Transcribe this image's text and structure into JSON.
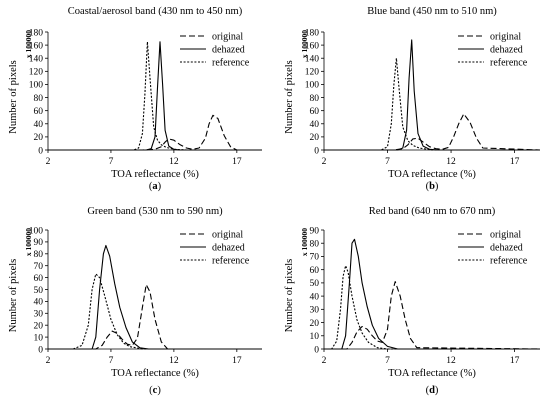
{
  "chart_data": [
    {
      "type": "line",
      "panel_label": "(a)",
      "title": "Coastal/aerosol band (430 nm to 450 nm)",
      "xlabel": "TOA reflectance (%)",
      "ylabel": "Number of pixels",
      "y_multiplier": "x 100000",
      "xlim": [
        2,
        19
      ],
      "ylim": [
        0,
        180
      ],
      "xticks": [
        2,
        7,
        12,
        17
      ],
      "yticks": [
        0,
        20,
        40,
        60,
        80,
        100,
        120,
        140,
        160,
        180
      ],
      "legend_position": "top-right",
      "series": [
        {
          "name": "original",
          "style": "dashed",
          "color": "#000000",
          "x": [
            2,
            9.5,
            10.5,
            11,
            11.3,
            11.6,
            12,
            12.5,
            13,
            13.5,
            14,
            14.5,
            14.8,
            15.1,
            15.5,
            16,
            16.5,
            17,
            19
          ],
          "y": [
            0,
            0,
            1,
            5,
            12,
            17,
            15,
            8,
            3,
            1,
            3,
            18,
            40,
            53,
            48,
            22,
            5,
            0,
            0
          ]
        },
        {
          "name": "dehazed",
          "style": "solid",
          "color": "#000000",
          "x": [
            2,
            9.8,
            10.2,
            10.5,
            10.7,
            10.9,
            11.1,
            11.3,
            11.6,
            12,
            12.5,
            13,
            19
          ],
          "y": [
            0,
            0,
            2,
            20,
            95,
            165,
            100,
            30,
            6,
            1,
            0,
            0,
            0
          ]
        },
        {
          "name": "reference",
          "style": "dotted",
          "color": "#000000",
          "x": [
            2,
            8.8,
            9.2,
            9.5,
            9.7,
            9.9,
            10.1,
            10.4,
            10.7,
            11,
            11.4,
            12,
            13,
            19
          ],
          "y": [
            0,
            0,
            3,
            25,
            85,
            165,
            110,
            35,
            15,
            8,
            4,
            1,
            0,
            0
          ]
        }
      ]
    },
    {
      "type": "line",
      "panel_label": "(b)",
      "title": "Blue band (450 nm to 510 nm)",
      "xlabel": "TOA reflectance (%)",
      "ylabel": "Number of pixels",
      "y_multiplier": "x 100000",
      "xlim": [
        2,
        19
      ],
      "ylim": [
        0,
        180
      ],
      "xticks": [
        2,
        7,
        12,
        17
      ],
      "yticks": [
        0,
        20,
        40,
        60,
        80,
        100,
        120,
        140,
        160,
        180
      ],
      "legend_position": "top-right",
      "series": [
        {
          "name": "original",
          "style": "dashed",
          "color": "#000000",
          "x": [
            2,
            7.5,
            8.2,
            8.6,
            9,
            9.4,
            9.8,
            10.3,
            10.8,
            11.3,
            11.8,
            12.2,
            12.6,
            13,
            13.5,
            14,
            14.5,
            19
          ],
          "y": [
            0,
            0,
            2,
            8,
            17,
            18,
            12,
            5,
            2,
            1,
            4,
            20,
            40,
            55,
            42,
            18,
            3,
            0
          ]
        },
        {
          "name": "dehazed",
          "style": "solid",
          "color": "#000000",
          "x": [
            2,
            7.8,
            8.2,
            8.5,
            8.7,
            8.9,
            9.1,
            9.4,
            9.8,
            10.3,
            11,
            19
          ],
          "y": [
            0,
            0,
            3,
            30,
            110,
            168,
            90,
            25,
            6,
            1,
            0,
            0
          ]
        },
        {
          "name": "reference",
          "style": "dotted",
          "color": "#000000",
          "x": [
            2,
            6.5,
            7,
            7.3,
            7.5,
            7.7,
            7.9,
            8.2,
            8.6,
            9,
            9.5,
            10.5,
            19
          ],
          "y": [
            0,
            0,
            5,
            40,
            100,
            140,
            95,
            35,
            14,
            7,
            3,
            0,
            0
          ]
        }
      ]
    },
    {
      "type": "line",
      "panel_label": "(c)",
      "title": "Green band (530 nm to 590 nm)",
      "xlabel": "TOA reflectance (%)",
      "ylabel": "Number of pixels",
      "y_multiplier": "x 100000",
      "xlim": [
        2,
        19
      ],
      "ylim": [
        0,
        100
      ],
      "xticks": [
        2,
        7,
        12,
        17
      ],
      "yticks": [
        0,
        10,
        20,
        30,
        40,
        50,
        60,
        70,
        80,
        90,
        100
      ],
      "legend_position": "top-right",
      "series": [
        {
          "name": "original",
          "style": "dashed",
          "color": "#000000",
          "x": [
            2,
            5.8,
            6.3,
            6.7,
            7.1,
            7.5,
            7.9,
            8.3,
            8.7,
            9.1,
            9.5,
            9.8,
            10.1,
            10.5,
            11,
            11.5,
            19
          ],
          "y": [
            0,
            0,
            3,
            10,
            15,
            13,
            8,
            4,
            3,
            9,
            35,
            54,
            48,
            25,
            6,
            0,
            0
          ]
        },
        {
          "name": "dehazed",
          "style": "solid",
          "color": "#000000",
          "x": [
            2,
            5.5,
            5.8,
            6.1,
            6.4,
            6.6,
            6.9,
            7.3,
            7.7,
            8.2,
            8.7,
            9.3,
            10,
            19
          ],
          "y": [
            0,
            0,
            10,
            50,
            80,
            87,
            78,
            55,
            35,
            18,
            6,
            1,
            0,
            0
          ]
        },
        {
          "name": "reference",
          "style": "dotted",
          "color": "#000000",
          "x": [
            2,
            4,
            4.7,
            5.2,
            5.5,
            5.8,
            6.1,
            6.5,
            7,
            7.5,
            8,
            8.5,
            9.5,
            19
          ],
          "y": [
            0,
            0,
            3,
            20,
            50,
            63,
            60,
            45,
            25,
            12,
            5,
            2,
            0,
            0
          ]
        }
      ]
    },
    {
      "type": "line",
      "panel_label": "(d)",
      "title": "Red band (640 nm to 670 nm)",
      "xlabel": "TOA reflectance (%)",
      "ylabel": "Number of pixels",
      "y_multiplier": "x 100000",
      "xlim": [
        2,
        19
      ],
      "ylim": [
        0,
        90
      ],
      "xticks": [
        2,
        7,
        12,
        17
      ],
      "yticks": [
        0,
        10,
        20,
        30,
        40,
        50,
        60,
        70,
        80,
        90
      ],
      "legend_position": "top-right",
      "series": [
        {
          "name": "original",
          "style": "dashed",
          "color": "#000000",
          "x": [
            2,
            3.8,
            4.2,
            4.6,
            5,
            5.4,
            5.8,
            6.2,
            6.6,
            7,
            7.3,
            7.6,
            8,
            8.4,
            8.8,
            9.3,
            19
          ],
          "y": [
            0,
            0,
            5,
            13,
            17,
            15,
            10,
            6,
            5,
            15,
            40,
            51,
            40,
            22,
            8,
            1,
            0
          ]
        },
        {
          "name": "dehazed",
          "style": "solid",
          "color": "#000000",
          "x": [
            2,
            3.4,
            3.7,
            4,
            4.2,
            4.4,
            4.7,
            5,
            5.4,
            5.8,
            6.3,
            7,
            7.8,
            19
          ],
          "y": [
            0,
            0,
            10,
            50,
            80,
            83,
            70,
            50,
            32,
            18,
            8,
            2,
            0,
            0
          ]
        },
        {
          "name": "reference",
          "style": "dotted",
          "color": "#000000",
          "x": [
            2,
            2.6,
            3,
            3.3,
            3.5,
            3.7,
            3.9,
            4.2,
            4.6,
            5,
            5.5,
            6.2,
            7,
            19
          ],
          "y": [
            0,
            0,
            6,
            30,
            55,
            63,
            58,
            40,
            22,
            12,
            5,
            1,
            0,
            0
          ]
        }
      ]
    }
  ]
}
